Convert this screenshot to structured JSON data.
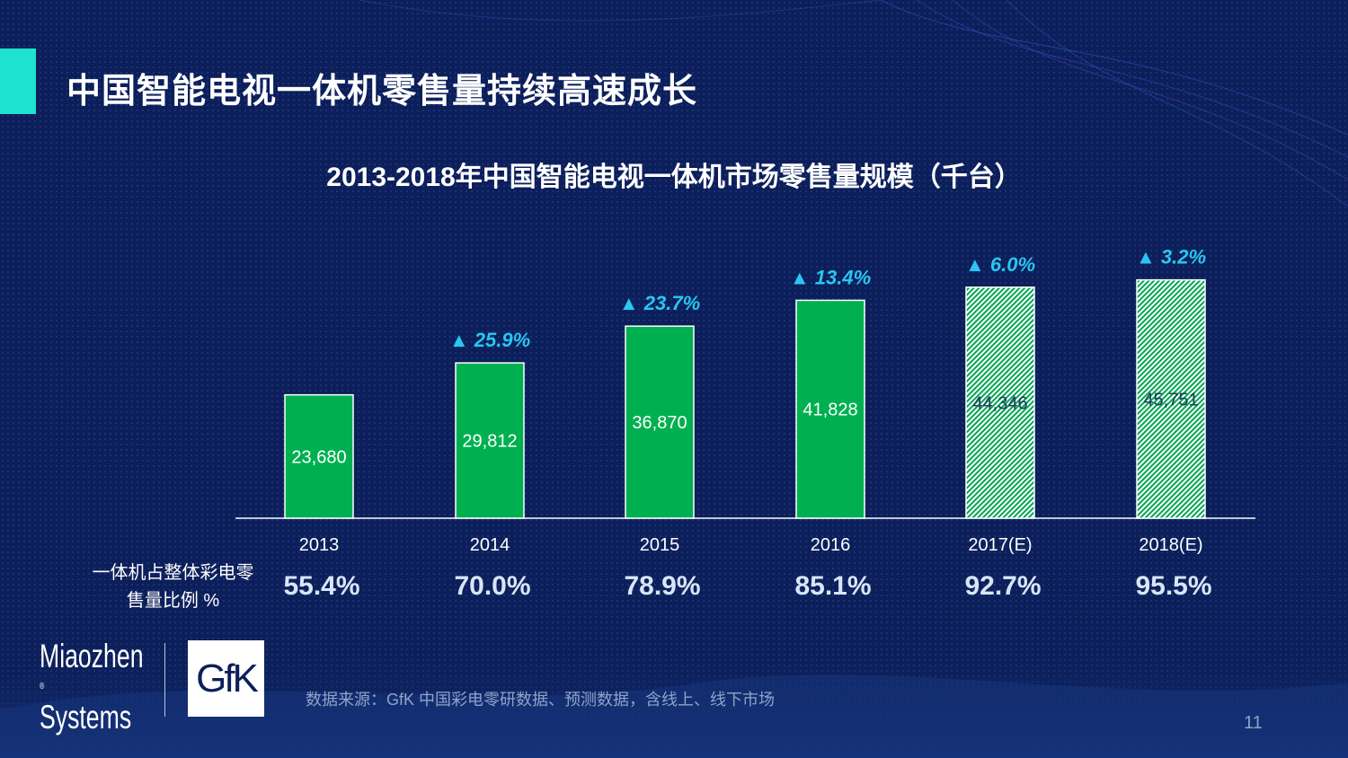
{
  "slide": {
    "title": "中国智能电视一体机零售量持续高速成长",
    "source_note": "数据来源：GfK 中国彩电零研数据、预测数据，含线上、线下市场",
    "page_number": "11",
    "logos": {
      "left_line1": "Miaozhen",
      "left_mark": "®",
      "left_line2": "Systems",
      "right": "GfK"
    }
  },
  "chart_data": {
    "type": "bar",
    "title": "2013-2018年中国智能电视一体机市场零售量规模（千台）",
    "categories": [
      "2013",
      "2014",
      "2015",
      "2016",
      "2017(E)",
      "2018(E)"
    ],
    "values": [
      23680,
      29812,
      36870,
      41828,
      44346,
      45751
    ],
    "value_labels": [
      "23,680",
      "29,812",
      "36,870",
      "41,828",
      "44,346",
      "45,751"
    ],
    "forecast": [
      false,
      false,
      false,
      false,
      true,
      true
    ],
    "growth_labels": [
      "",
      "▲ 25.9%",
      "▲ 23.7%",
      "▲ 13.4%",
      "▲ 6.0%",
      "▲ 3.2%"
    ],
    "share_label": "一体机占整体彩电零售量比例 %",
    "share_values": [
      "55.4%",
      "70.0%",
      "78.9%",
      "85.1%",
      "92.7%",
      "95.5%"
    ],
    "ylim": [
      0,
      50000
    ],
    "colors": {
      "bar": "#00b050",
      "growth": "#29c6f0",
      "grid_axis": "#ffffff"
    }
  }
}
